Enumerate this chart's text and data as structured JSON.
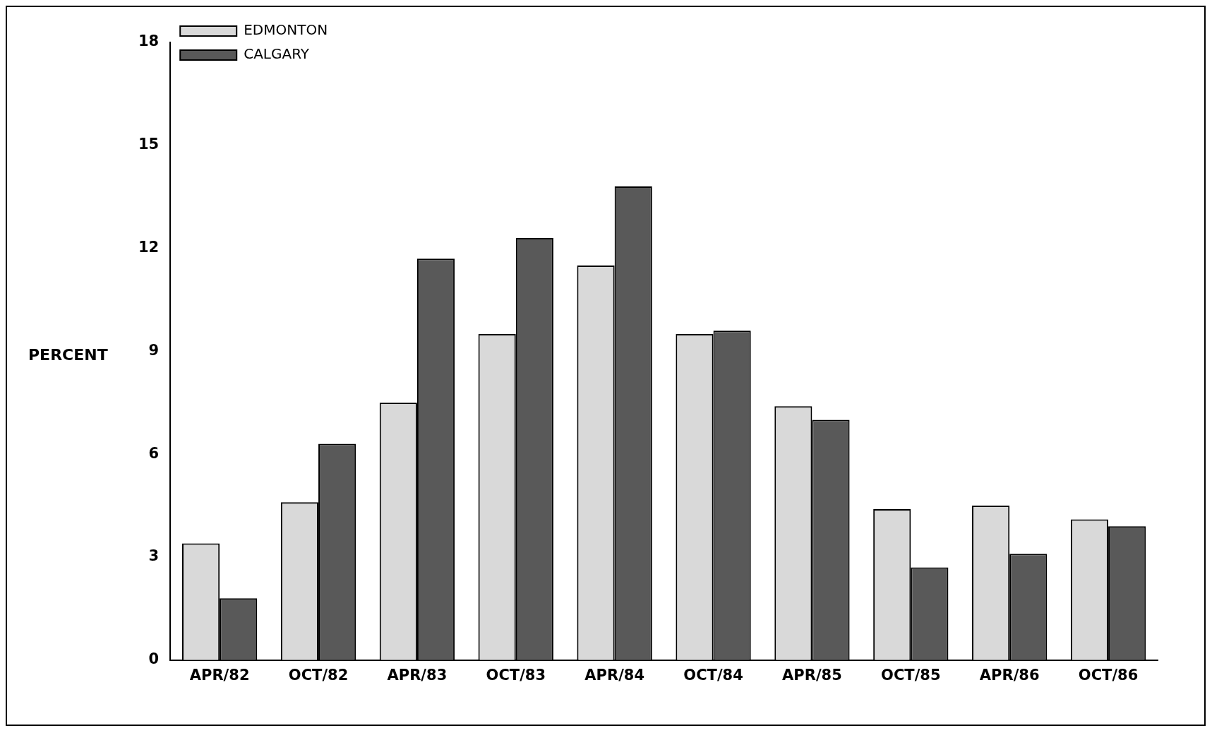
{
  "chart_data": {
    "type": "bar",
    "ylabel": "PERCENT",
    "categories": [
      "APR/82",
      "OCT/82",
      "APR/83",
      "OCT/83",
      "APR/84",
      "OCT/84",
      "APR/85",
      "OCT/85",
      "APR/86",
      "OCT/86"
    ],
    "series": [
      {
        "name": "EDMONTON",
        "color": "#d9d9d9",
        "values": [
          3.4,
          4.6,
          7.5,
          9.5,
          11.5,
          9.5,
          7.4,
          4.4,
          4.5,
          4.1
        ]
      },
      {
        "name": "CALGARY",
        "color": "#595959",
        "values": [
          1.8,
          6.3,
          11.7,
          12.3,
          13.8,
          9.6,
          7.0,
          2.7,
          3.1,
          3.9
        ]
      }
    ],
    "ylim": [
      0,
      18
    ],
    "yticks": [
      0,
      3,
      6,
      9,
      12,
      15,
      18
    ],
    "grid": false,
    "legend": "top left"
  }
}
